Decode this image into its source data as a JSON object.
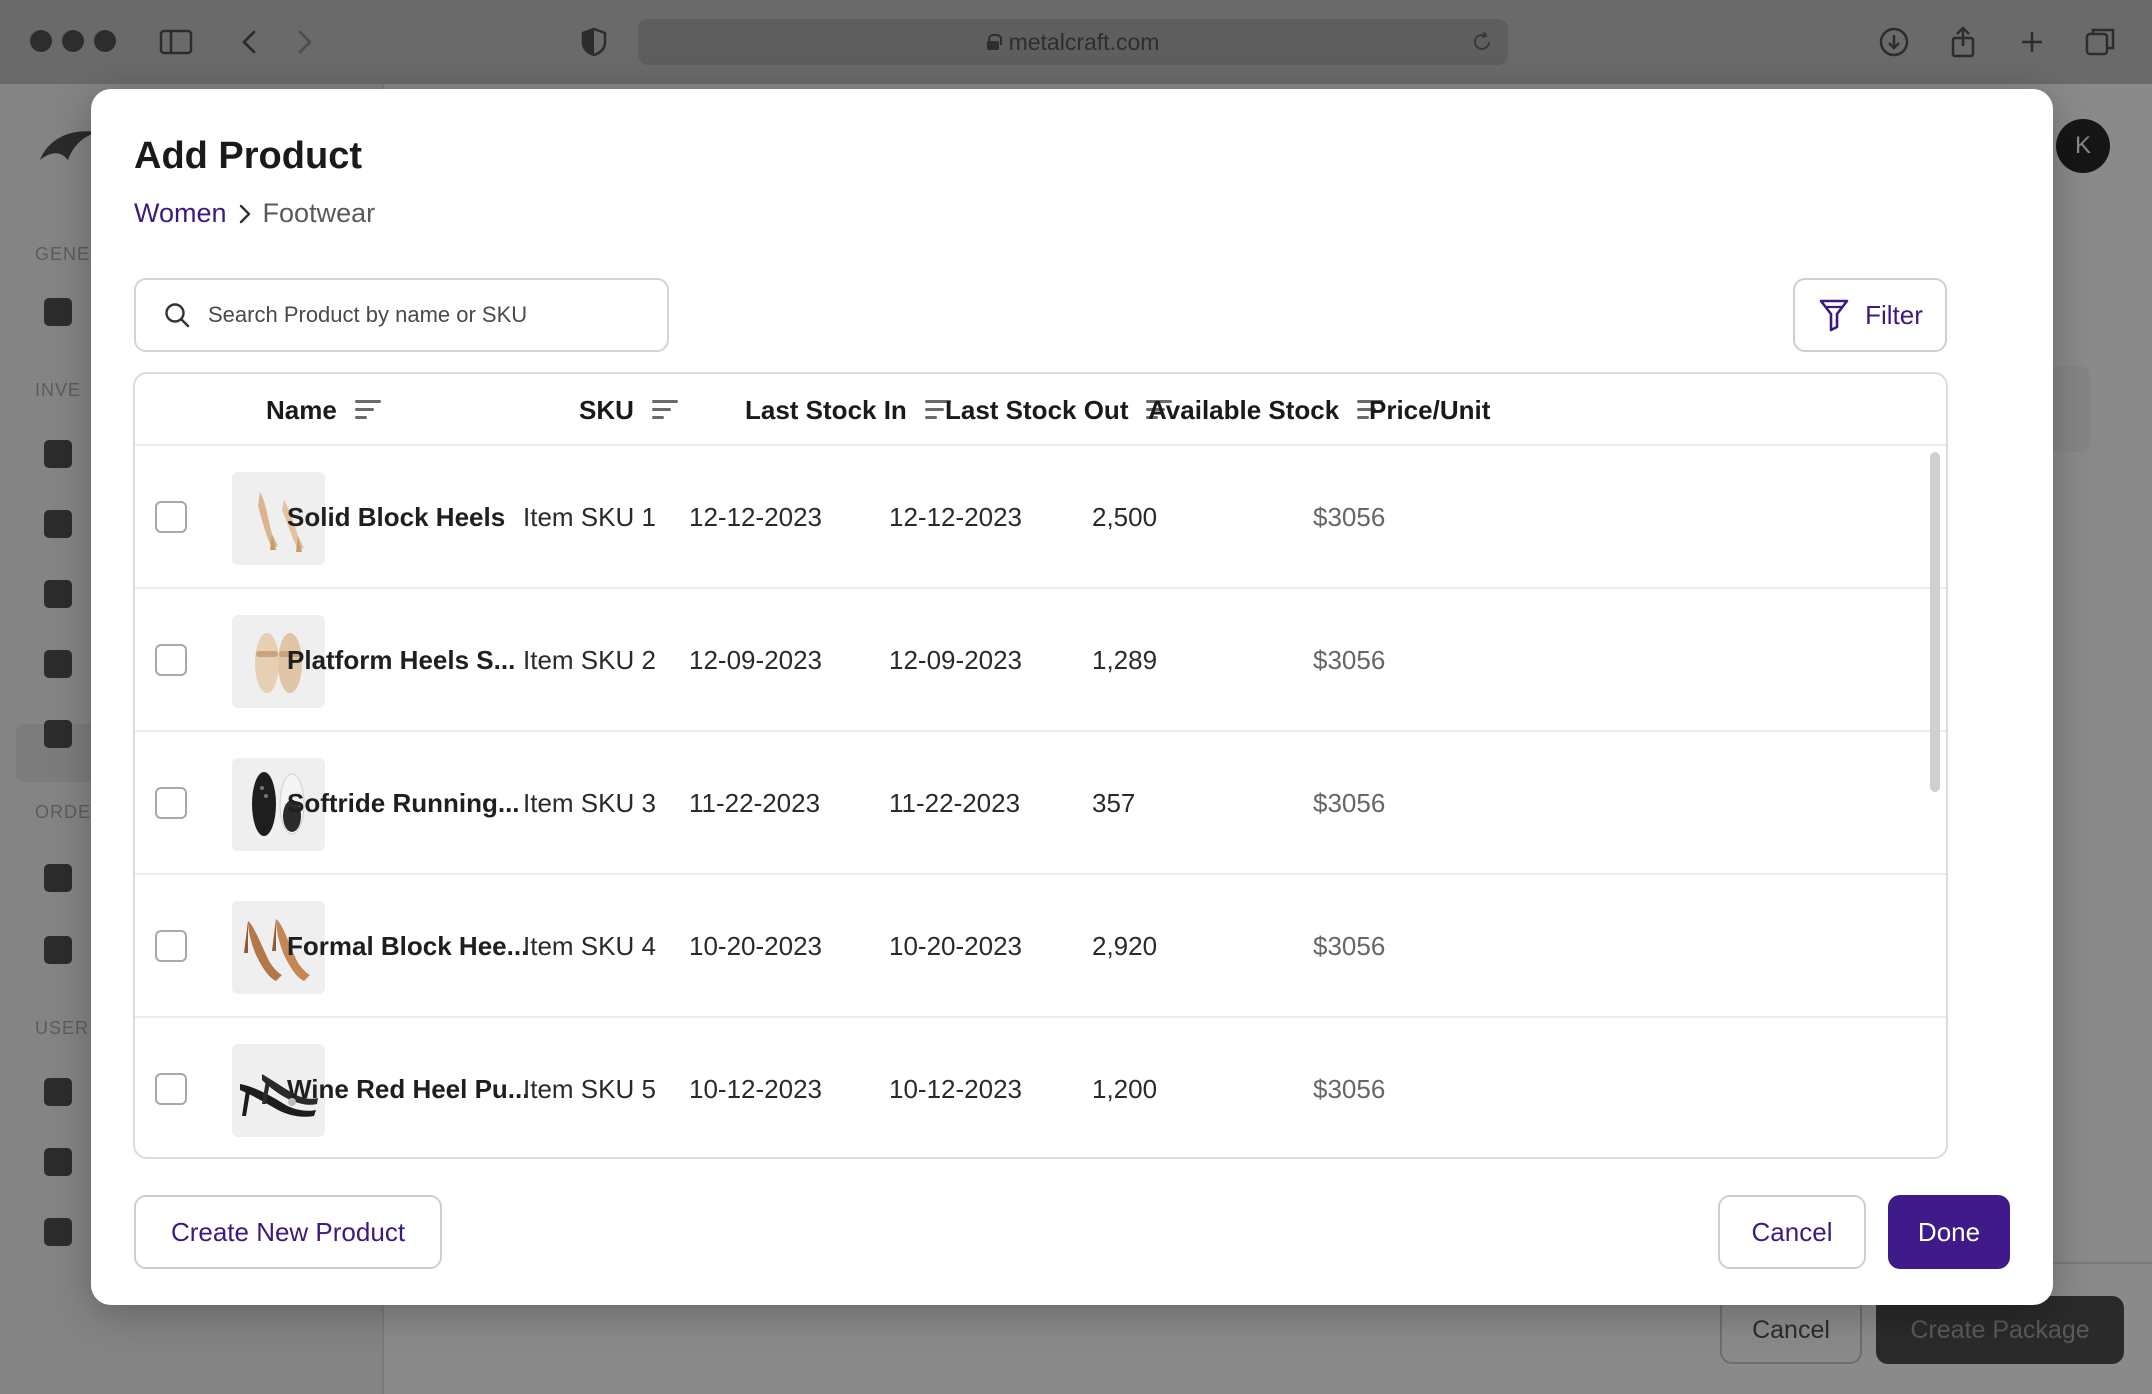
{
  "browser": {
    "url": "metalcraft.com"
  },
  "app": {
    "avatar_initial": "K",
    "sidebar_sections": [
      "GENE",
      "INVE",
      "ORDE",
      "USER"
    ],
    "footer": {
      "cancel_label": "Cancel",
      "create_label": "Create Package"
    }
  },
  "modal": {
    "title": "Add Product",
    "breadcrumb": {
      "parent": "Women",
      "current": "Footwear"
    },
    "search": {
      "placeholder": "Search Product by name or SKU",
      "value": ""
    },
    "filter_label": "Filter",
    "columns": [
      {
        "label": "Name",
        "sortable": true
      },
      {
        "label": "SKU",
        "sortable": true
      },
      {
        "label": "Last Stock In",
        "sortable": true
      },
      {
        "label": "Last Stock Out",
        "sortable": true
      },
      {
        "label": "Available Stock",
        "sortable": true
      },
      {
        "label": "Price/Unit",
        "sortable": false
      }
    ],
    "rows": [
      {
        "name": "Solid Block Heels",
        "sku": "Item SKU 1",
        "last_in": "12-12-2023",
        "last_out": "12-12-2023",
        "stock": "2,500",
        "price": "$3056",
        "image": "heels-icon"
      },
      {
        "name": "Platform Heels S...",
        "sku": "Item SKU 2",
        "last_in": "12-09-2023",
        "last_out": "12-09-2023",
        "stock": "1,289",
        "price": "$3056",
        "image": "sandals-icon"
      },
      {
        "name": "Softride Running...",
        "sku": "Item SKU 3",
        "last_in": "11-22-2023",
        "last_out": "11-22-2023",
        "stock": "357",
        "price": "$3056",
        "image": "sneakers-icon"
      },
      {
        "name": "Formal Block Hee...",
        "sku": "Item SKU 4",
        "last_in": "10-20-2023",
        "last_out": "10-20-2023",
        "stock": "2,920",
        "price": "$3056",
        "image": "pumps-icon"
      },
      {
        "name": "Wine Red Heel Pu...",
        "sku": "Item SKU 5",
        "last_in": "10-12-2023",
        "last_out": "10-12-2023",
        "stock": "1,200",
        "price": "$3056",
        "image": "slingback-icon"
      }
    ],
    "actions": {
      "create_label": "Create New Product",
      "cancel_label": "Cancel",
      "done_label": "Done"
    },
    "colors": {
      "accent": "#3e1a8a",
      "link": "#3d1a7d"
    }
  }
}
